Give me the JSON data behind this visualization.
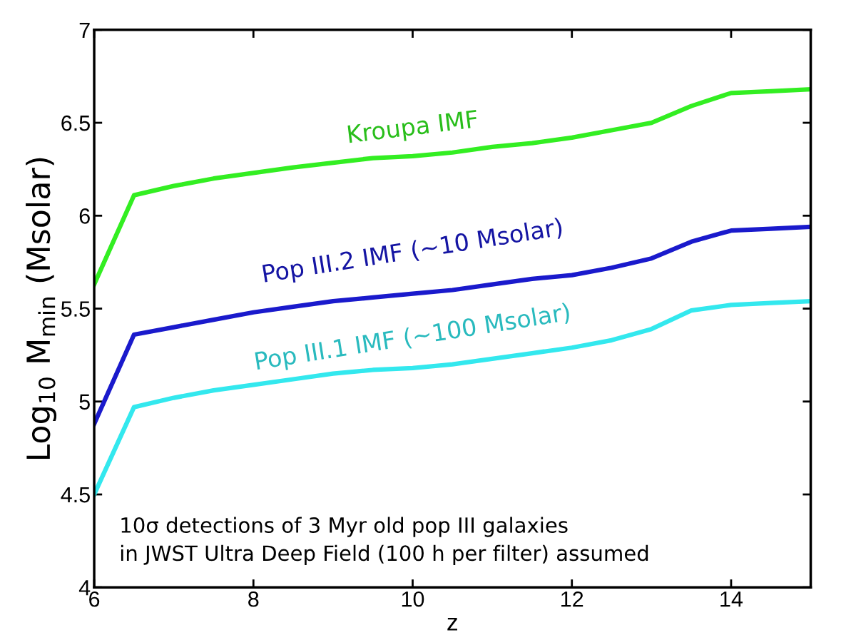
{
  "chart_data": {
    "type": "line",
    "xlabel": "z",
    "ylabel": "Log$_{10}$ M$_{min}$ (Msolar)",
    "x": [
      6,
      6.5,
      7,
      7.5,
      8,
      8.5,
      9,
      9.5,
      10,
      10.5,
      11,
      11.5,
      12,
      12.5,
      13,
      13.5,
      14,
      14.5,
      15
    ],
    "series": [
      {
        "name": "Kroupa IMF",
        "color": "#33ee22",
        "values": [
          5.63,
          6.11,
          6.16,
          6.2,
          6.23,
          6.26,
          6.285,
          6.31,
          6.32,
          6.34,
          6.37,
          6.39,
          6.42,
          6.46,
          6.5,
          6.59,
          6.66,
          6.67,
          6.68
        ]
      },
      {
        "name": "Pop III.2 IMF (~10 Msolar)",
        "color": "#1a1acc",
        "values": [
          4.88,
          5.36,
          5.4,
          5.44,
          5.48,
          5.51,
          5.54,
          5.56,
          5.58,
          5.6,
          5.63,
          5.66,
          5.68,
          5.72,
          5.77,
          5.86,
          5.92,
          5.93,
          5.94
        ]
      },
      {
        "name": "Pop III.1 IMF (~100 Msolar)",
        "color": "#33e8ee",
        "values": [
          4.5,
          4.97,
          5.02,
          5.06,
          5.09,
          5.12,
          5.15,
          5.17,
          5.18,
          5.2,
          5.23,
          5.26,
          5.29,
          5.33,
          5.39,
          5.49,
          5.52,
          5.53,
          5.54
        ]
      }
    ],
    "annotations": [
      "10σ detections of 3 Myr old pop III galaxies\nin JWST Ultra Deep Field (100 h per filter) assumed"
    ],
    "xlim": [
      6,
      15
    ],
    "xticks": [
      6,
      8,
      10,
      12,
      14
    ],
    "ylim": [
      4,
      7
    ],
    "yticks": [
      4,
      4.5,
      5,
      5.5,
      6,
      6.5,
      7
    ],
    "grid": false,
    "line_style": "solid",
    "marker": "none"
  }
}
